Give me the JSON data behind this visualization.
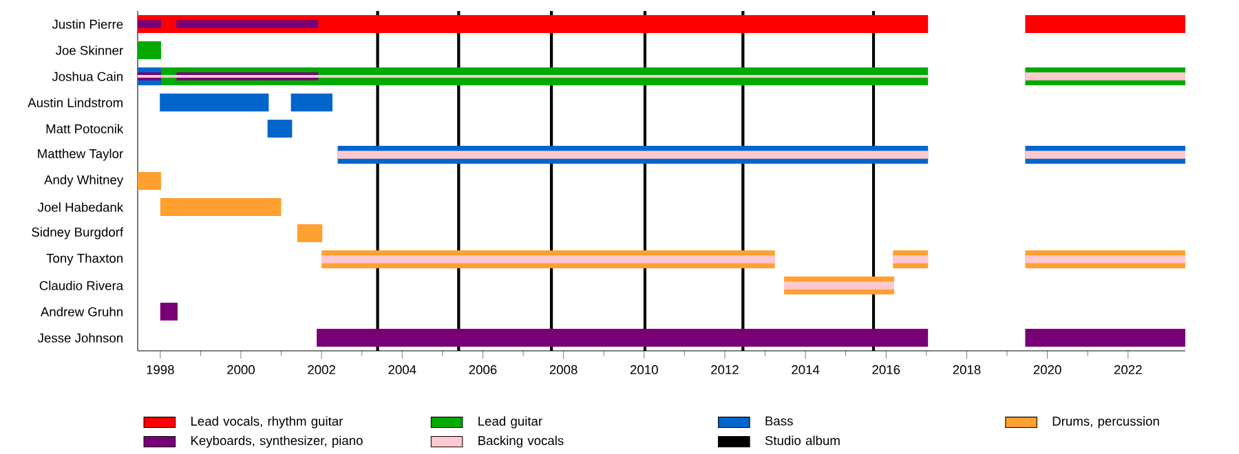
{
  "chart_data": {
    "type": "bar",
    "orientation": "horizontal",
    "legend": "bottom",
    "categories": [
      "Justin Pierre",
      "Joe Skinner",
      "Joshua Cain",
      "Austin Lindstrom",
      "Matt Potocnik",
      "Matthew Taylor",
      "Andy Whitney",
      "Joel Habedank",
      "Sidney Burgdorf",
      "Tony Thaxton",
      "Claudio Rivera",
      "Andrew Gruhn",
      "Jesse Johnson"
    ],
    "xlim": [
      1997.44,
      2023.42
    ],
    "xticks": [
      1998,
      2000,
      2002,
      2004,
      2006,
      2008,
      2010,
      2012,
      2014,
      2016,
      2018,
      2020,
      2022
    ],
    "series": [
      {
        "name": "Lead vocals, rhythm guitar",
        "color": "#ff0000",
        "values": [
          19.6,
          null,
          null,
          null,
          null,
          null,
          null,
          null,
          null,
          null,
          null,
          null,
          null
        ],
        "base": [
          1997.44,
          null,
          null,
          null,
          null,
          null,
          null,
          null,
          null,
          null,
          null,
          null,
          null
        ]
      },
      {
        "color": "#ff0000",
        "values": [
          3.97,
          null,
          null,
          null,
          null,
          null,
          null,
          null,
          null,
          null,
          null,
          null,
          null
        ],
        "base": [
          2019.45,
          null,
          null,
          null,
          null,
          null,
          null,
          null,
          null,
          null,
          null,
          null,
          null
        ]
      },
      {
        "name": "Lead guitar",
        "color": "#00aa00",
        "values": [
          null,
          0.58,
          19.02,
          null,
          null,
          null,
          null,
          null,
          null,
          null,
          null,
          null,
          null
        ],
        "base": [
          null,
          1997.44,
          1998.02,
          null,
          null,
          null,
          null,
          null,
          null,
          null,
          null,
          null,
          null
        ]
      },
      {
        "color": "#00aa00",
        "values": [
          null,
          null,
          3.97,
          null,
          null,
          null,
          null,
          null,
          null,
          null,
          null,
          null,
          null
        ],
        "base": [
          null,
          null,
          2019.45,
          null,
          null,
          null,
          null,
          null,
          null,
          null,
          null,
          null,
          null
        ]
      },
      {
        "name": "Bass",
        "color": "#0066cc",
        "values": [
          null,
          null,
          0.58,
          2.7,
          0.61,
          14.64,
          null,
          null,
          null,
          null,
          null,
          null,
          null
        ],
        "base": [
          null,
          null,
          1997.44,
          1997.99,
          2000.66,
          2002.4,
          null,
          null,
          null,
          null,
          null,
          null,
          null
        ]
      },
      {
        "color": "#0066cc",
        "values": [
          null,
          null,
          null,
          1.03,
          null,
          3.97,
          null,
          null,
          null,
          null,
          null,
          null,
          null
        ],
        "base": [
          null,
          null,
          null,
          2001.24,
          null,
          2019.45,
          null,
          null,
          null,
          null,
          null,
          null,
          null
        ]
      },
      {
        "name": "Drums, percussion",
        "color": "#ffa030",
        "values": [
          null,
          null,
          null,
          null,
          null,
          null,
          0.58,
          3.0,
          0.62,
          11.24,
          2.73,
          null,
          null
        ],
        "base": [
          null,
          null,
          null,
          null,
          null,
          null,
          1997.44,
          1998.0,
          2001.4,
          2002.0,
          2013.47,
          null,
          null
        ]
      },
      {
        "color": "#ffa030",
        "values": [
          null,
          null,
          null,
          null,
          null,
          null,
          null,
          null,
          null,
          0.87,
          null,
          null,
          null
        ],
        "base": [
          null,
          null,
          null,
          null,
          null,
          null,
          null,
          null,
          null,
          2016.17,
          null,
          null,
          null
        ]
      },
      {
        "color": "#ffa030",
        "values": [
          null,
          null,
          null,
          null,
          null,
          null,
          null,
          null,
          null,
          3.97,
          null,
          null,
          null
        ],
        "base": [
          null,
          null,
          null,
          null,
          null,
          null,
          null,
          null,
          null,
          2019.45,
          null,
          null,
          null
        ]
      },
      {
        "name": "Keyboards, synthesizer, piano",
        "color": "#770077",
        "values": [
          null,
          null,
          null,
          null,
          null,
          null,
          null,
          null,
          null,
          null,
          null,
          0.43,
          15.16
        ],
        "base": [
          null,
          null,
          null,
          null,
          null,
          null,
          null,
          null,
          null,
          null,
          null,
          1998.0,
          2001.88
        ]
      },
      {
        "color": "#770077",
        "values": [
          null,
          null,
          null,
          null,
          null,
          null,
          null,
          null,
          null,
          null,
          null,
          null,
          3.97
        ],
        "base": [
          null,
          null,
          null,
          null,
          null,
          null,
          null,
          null,
          null,
          null,
          null,
          null,
          2019.45
        ]
      },
      {
        "color": "#770077",
        "values": [
          0.58,
          null,
          0.58,
          null,
          null,
          null,
          null,
          null,
          null,
          null,
          null,
          null,
          null
        ],
        "base": [
          1997.44,
          null,
          1997.44,
          null,
          null,
          null,
          null,
          null,
          null,
          null,
          null,
          null,
          null
        ]
      },
      {
        "color": "#770077",
        "values": [
          3.52,
          null,
          3.52,
          null,
          null,
          null,
          null,
          null,
          null,
          null,
          null,
          null,
          null
        ],
        "base": [
          1998.4,
          null,
          1998.4,
          null,
          null,
          null,
          null,
          null,
          null,
          null,
          null,
          null,
          null
        ]
      },
      {
        "name": "Backing vocals",
        "color": "#ffc8d0",
        "values": [
          null,
          null,
          19.6,
          null,
          null,
          14.64,
          null,
          null,
          null,
          11.24,
          2.73,
          null,
          null
        ],
        "base": [
          null,
          null,
          1997.44,
          null,
          null,
          2002.4,
          null,
          null,
          null,
          2002.0,
          2013.47,
          null,
          null
        ]
      },
      {
        "color": "#ffc8d0",
        "values": [
          null,
          null,
          3.97,
          null,
          null,
          3.97,
          null,
          null,
          null,
          0.87,
          null,
          null,
          null
        ],
        "base": [
          null,
          null,
          2019.45,
          null,
          null,
          2019.45,
          null,
          null,
          null,
          2016.17,
          null,
          null,
          null
        ]
      },
      {
        "color": "#ffc8d0",
        "values": [
          null,
          null,
          null,
          null,
          null,
          null,
          null,
          null,
          null,
          3.97,
          null,
          null,
          null
        ],
        "base": [
          null,
          null,
          null,
          null,
          null,
          null,
          null,
          null,
          null,
          2019.45,
          null,
          null,
          null
        ]
      }
    ],
    "ref_lines": [
      {
        "axis": "x",
        "value": 2003.39,
        "label": "Studio album",
        "color": "#000000"
      },
      {
        "axis": "x",
        "value": 2005.4,
        "color": "#000000"
      },
      {
        "axis": "x",
        "value": 2007.7,
        "color": "#000000"
      },
      {
        "axis": "x",
        "value": 2010.02,
        "color": "#000000"
      },
      {
        "axis": "x",
        "value": 2012.45,
        "color": "#000000"
      },
      {
        "axis": "x",
        "value": 2015.69,
        "color": "#000000"
      }
    ]
  }
}
